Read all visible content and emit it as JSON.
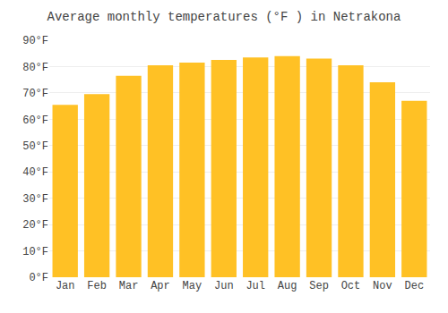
{
  "chart_data": {
    "type": "bar",
    "title": "Average monthly temperatures (°F ) in Netrakona",
    "categories": [
      "Jan",
      "Feb",
      "Mar",
      "Apr",
      "May",
      "Jun",
      "Jul",
      "Aug",
      "Sep",
      "Oct",
      "Nov",
      "Dec"
    ],
    "values": [
      65.5,
      69.5,
      76.5,
      80.5,
      81.5,
      82.5,
      83.5,
      84.0,
      83.0,
      80.5,
      74.0,
      67.0
    ],
    "color": "#FFC125",
    "ylim": [
      0,
      90
    ],
    "yticks": [
      {
        "value": 0,
        "label": "0°F"
      },
      {
        "value": 10,
        "label": "10°F"
      },
      {
        "value": 20,
        "label": "20°F"
      },
      {
        "value": 30,
        "label": "30°F"
      },
      {
        "value": 40,
        "label": "40°F"
      },
      {
        "value": 50,
        "label": "50°F"
      },
      {
        "value": 60,
        "label": "60°F"
      },
      {
        "value": 70,
        "label": "70°F"
      },
      {
        "value": 80,
        "label": "80°F"
      },
      {
        "value": 90,
        "label": "90°F"
      }
    ],
    "grid": true
  }
}
